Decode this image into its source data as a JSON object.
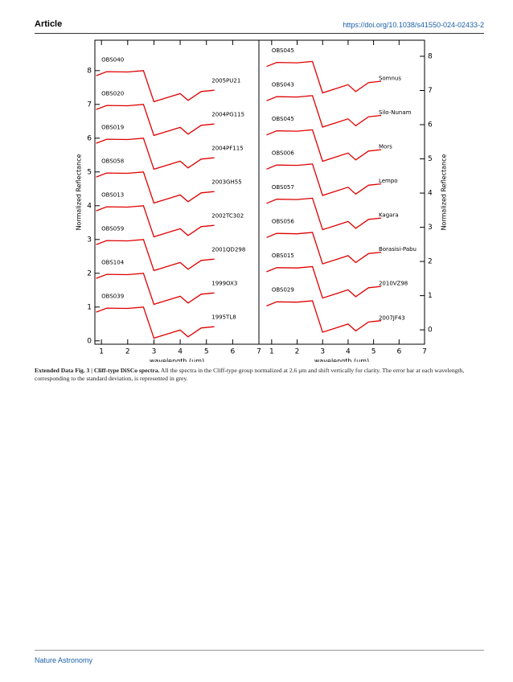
{
  "header": {
    "left": "Article",
    "right": "https://doi.org/10.1038/s41550-024-02433-2"
  },
  "chart_data": [
    {
      "type": "line",
      "axis_side": "left",
      "xlabel": "wavelength (μm)",
      "ylabel": "Normalized Reflectance",
      "xlim": [
        0.75,
        7
      ],
      "ylim": [
        -0.1,
        8.9
      ],
      "xticks": [
        1,
        2,
        3,
        4,
        5,
        6,
        7
      ],
      "yticks": [
        0,
        1,
        2,
        3,
        4,
        5,
        6,
        7,
        8
      ],
      "x": [
        0.8,
        1.2,
        2.0,
        2.6,
        3.0,
        3.5,
        4.0,
        4.3,
        4.8,
        5.3
      ],
      "series": [
        {
          "name": "OBS040",
          "label": "2005PU21",
          "color": "#e00000",
          "values": [
            7.85,
            7.97,
            7.96,
            8.0,
            7.08,
            7.2,
            7.32,
            7.12,
            7.38,
            7.42
          ]
        },
        {
          "name": "OBS020",
          "label": "2004PG115",
          "color": "#e00000",
          "values": [
            6.85,
            6.97,
            6.96,
            7.0,
            6.08,
            6.2,
            6.32,
            6.12,
            6.38,
            6.42
          ]
        },
        {
          "name": "OBS019",
          "label": "2004PF115",
          "color": "#e00000",
          "values": [
            5.85,
            5.97,
            5.96,
            6.0,
            5.08,
            5.2,
            5.32,
            5.12,
            5.38,
            5.42
          ]
        },
        {
          "name": "OBS058",
          "label": "2003GH55",
          "color": "#e00000",
          "values": [
            4.85,
            4.97,
            4.96,
            5.0,
            4.08,
            4.2,
            4.32,
            4.12,
            4.38,
            4.42
          ]
        },
        {
          "name": "OBS013",
          "label": "2002TC302",
          "color": "#e00000",
          "values": [
            3.85,
            3.97,
            3.96,
            4.0,
            3.08,
            3.2,
            3.32,
            3.12,
            3.38,
            3.42
          ]
        },
        {
          "name": "OBS059",
          "label": "2001QD298",
          "color": "#e00000",
          "values": [
            2.85,
            2.97,
            2.96,
            3.0,
            2.08,
            2.2,
            2.32,
            2.12,
            2.38,
            2.42
          ]
        },
        {
          "name": "OBS104",
          "label": "1999OX3",
          "color": "#e00000",
          "values": [
            1.85,
            1.97,
            1.96,
            2.0,
            1.08,
            1.2,
            1.32,
            1.12,
            1.38,
            1.42
          ]
        },
        {
          "name": "OBS039",
          "label": "1995TL8",
          "color": "#e00000",
          "values": [
            0.85,
            0.97,
            0.96,
            1.0,
            0.08,
            0.2,
            0.32,
            0.12,
            0.38,
            0.42
          ]
        }
      ]
    },
    {
      "type": "line",
      "axis_side": "right",
      "xlabel": "wavelength (μm)",
      "ylabel": "Normalized Reflectance",
      "xlim": [
        0.5,
        7
      ],
      "ylim": [
        -0.42,
        8.47
      ],
      "xticks": [
        1,
        2,
        3,
        4,
        5,
        6,
        7
      ],
      "yticks": [
        0,
        1,
        2,
        3,
        4,
        5,
        6,
        7,
        8
      ],
      "x": [
        0.8,
        1.2,
        2.0,
        2.6,
        3.0,
        3.5,
        4.0,
        4.3,
        4.8,
        5.3
      ],
      "series": [
        {
          "name": "OBS045",
          "label": "Somnus",
          "color": "#e00000",
          "values": [
            7.7,
            7.82,
            7.81,
            7.85,
            6.93,
            7.05,
            7.17,
            6.97,
            7.23,
            7.27
          ]
        },
        {
          "name": "OBS043",
          "label": "Silo-Nunam",
          "color": "#e00000",
          "values": [
            6.7,
            6.82,
            6.81,
            6.85,
            5.93,
            6.05,
            6.17,
            5.97,
            6.23,
            6.27
          ]
        },
        {
          "name": "OBS045",
          "label": "Mors",
          "color": "#e00000",
          "values": [
            5.7,
            5.82,
            5.81,
            5.85,
            4.93,
            5.05,
            5.17,
            4.97,
            5.23,
            5.27
          ]
        },
        {
          "name": "OBS006",
          "label": "Lempo",
          "color": "#e00000",
          "values": [
            4.7,
            4.82,
            4.81,
            4.85,
            3.93,
            4.05,
            4.17,
            3.97,
            4.23,
            4.27
          ]
        },
        {
          "name": "OBS057",
          "label": "Kagara",
          "color": "#e00000",
          "values": [
            3.7,
            3.82,
            3.81,
            3.85,
            2.93,
            3.05,
            3.17,
            2.97,
            3.23,
            3.27
          ]
        },
        {
          "name": "OBS056",
          "label": "Borasisi-Pabu",
          "color": "#e00000",
          "values": [
            2.7,
            2.82,
            2.81,
            2.85,
            1.93,
            2.05,
            2.17,
            1.97,
            2.23,
            2.27
          ]
        },
        {
          "name": "OBS015",
          "label": "2010VZ98",
          "color": "#e00000",
          "values": [
            1.7,
            1.82,
            1.81,
            1.85,
            0.93,
            1.05,
            1.17,
            0.97,
            1.23,
            1.27
          ]
        },
        {
          "name": "OBS029",
          "label": "2007JF43",
          "color": "#e00000",
          "values": [
            0.7,
            0.82,
            0.81,
            0.85,
            -0.07,
            0.05,
            0.17,
            -0.03,
            0.23,
            0.27
          ]
        }
      ]
    }
  ],
  "caption": {
    "label": "Extended Data Fig. 3 | Cliff-type DiSCo spectra.",
    "text": "All the spectra in the Cliff-type group normalized at 2.6 μm and shift vertically for clarity. The error bar at each wavelength, corresponding to the standard deviation, is represented in grey."
  },
  "footer": "Nature Astronomy"
}
